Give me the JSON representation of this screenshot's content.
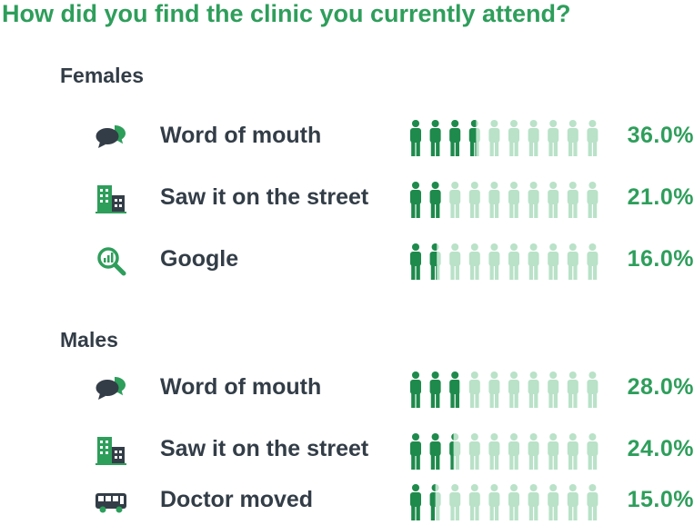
{
  "title": "How did you find the clinic you currently attend?",
  "colors": {
    "accent": "#2e9e5b",
    "filled": "#1e8a4c",
    "empty": "#b9e2c8",
    "text": "#333d47"
  },
  "chart_data": {
    "type": "pictogram",
    "icons_per_row": 10,
    "unit": "%",
    "groups": [
      {
        "name": "Females",
        "rows": [
          {
            "label": "Word of mouth",
            "icon": "speech-bubbles-icon",
            "value": 36.0,
            "value_label": "36.0%"
          },
          {
            "label": "Saw it on the street",
            "icon": "buildings-icon",
            "value": 21.0,
            "value_label": "21.0%"
          },
          {
            "label": "Google",
            "icon": "magnifier-chart-icon",
            "value": 16.0,
            "value_label": "16.0%"
          }
        ]
      },
      {
        "name": "Males",
        "rows": [
          {
            "label": "Word of mouth",
            "icon": "speech-bubbles-icon",
            "value": 28.0,
            "value_label": "28.0%"
          },
          {
            "label": "Saw it on the street",
            "icon": "buildings-icon",
            "value": 24.0,
            "value_label": "24.0%"
          },
          {
            "label": "Doctor moved",
            "icon": "bus-icon",
            "value": 15.0,
            "value_label": "15.0%"
          }
        ]
      }
    ]
  }
}
